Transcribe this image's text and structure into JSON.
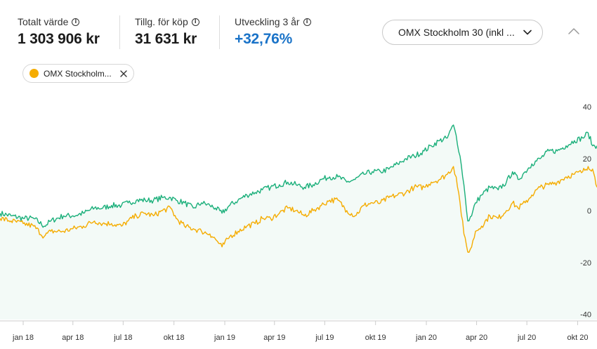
{
  "stats": [
    {
      "label": "Totalt värde",
      "value": "1 303 906 kr",
      "positive": false
    },
    {
      "label": "Tillg. för köp",
      "value": "31 631 kr",
      "positive": false
    },
    {
      "label": "Utveckling 3 år",
      "value": "+32,76%",
      "positive": true
    }
  ],
  "index_select": {
    "value": "OMX Stockholm 30 (inkl ..."
  },
  "chip": {
    "label": "OMX Stockholm...",
    "color": "#f5ac00"
  },
  "colors": {
    "portfolio": "#1aaf7a",
    "index": "#f5ac00",
    "area": "#f3faf7",
    "grid": "#cccccc"
  },
  "chart_data": {
    "type": "line",
    "x_ticks": [
      "jan 18",
      "apr 18",
      "jul 18",
      "okt 18",
      "jan 19",
      "apr 19",
      "jul 19",
      "okt 19",
      "jan 20",
      "apr 20",
      "jul 20",
      "okt 20"
    ],
    "y_ticks": [
      40,
      20,
      0,
      -20,
      -40
    ],
    "ylim": [
      -42,
      46
    ],
    "x_range": [
      "2017-11-20",
      "2020-11-05"
    ],
    "series": [
      {
        "points": [
          [
            "2017-11-20",
            -1
          ],
          [
            "2017-12-10",
            -2
          ],
          [
            "2018-01-01",
            -3
          ],
          [
            "2018-01-20",
            -3
          ],
          [
            "2018-02-08",
            -6
          ],
          [
            "2018-02-20",
            -4
          ],
          [
            "2018-03-15",
            -2
          ],
          [
            "2018-04-01",
            -2
          ],
          [
            "2018-04-20",
            -1
          ],
          [
            "2018-05-10",
            1
          ],
          [
            "2018-05-25",
            1
          ],
          [
            "2018-06-10",
            2
          ],
          [
            "2018-06-28",
            2
          ],
          [
            "2018-07-10",
            3
          ],
          [
            "2018-07-25",
            4
          ],
          [
            "2018-08-10",
            4
          ],
          [
            "2018-08-25",
            4
          ],
          [
            "2018-09-10",
            5
          ],
          [
            "2018-09-25",
            5
          ],
          [
            "2018-10-05",
            4
          ],
          [
            "2018-10-20",
            3
          ],
          [
            "2018-11-05",
            1
          ],
          [
            "2018-11-20",
            3
          ],
          [
            "2018-12-05",
            2
          ],
          [
            "2018-12-15",
            1
          ],
          [
            "2018-12-27",
            -1
          ],
          [
            "2019-01-10",
            2
          ],
          [
            "2019-01-25",
            4
          ],
          [
            "2019-02-10",
            6
          ],
          [
            "2019-02-25",
            7
          ],
          [
            "2019-03-10",
            8
          ],
          [
            "2019-03-25",
            9
          ],
          [
            "2019-04-10",
            10
          ],
          [
            "2019-04-25",
            11
          ],
          [
            "2019-05-10",
            10
          ],
          [
            "2019-05-25",
            9
          ],
          [
            "2019-06-10",
            10
          ],
          [
            "2019-06-25",
            12
          ],
          [
            "2019-07-10",
            13
          ],
          [
            "2019-07-25",
            13
          ],
          [
            "2019-08-10",
            11
          ],
          [
            "2019-08-25",
            12
          ],
          [
            "2019-09-10",
            14
          ],
          [
            "2019-09-25",
            15
          ],
          [
            "2019-10-10",
            15
          ],
          [
            "2019-10-25",
            16
          ],
          [
            "2019-11-10",
            18
          ],
          [
            "2019-11-25",
            20
          ],
          [
            "2019-12-10",
            21
          ],
          [
            "2019-12-28",
            23
          ],
          [
            "2020-01-10",
            25
          ],
          [
            "2020-01-25",
            27
          ],
          [
            "2020-02-08",
            28
          ],
          [
            "2020-02-19",
            33
          ],
          [
            "2020-02-24",
            29
          ],
          [
            "2020-03-02",
            21
          ],
          [
            "2020-03-09",
            10
          ],
          [
            "2020-03-16",
            -4
          ],
          [
            "2020-03-23",
            -2
          ],
          [
            "2020-03-30",
            3
          ],
          [
            "2020-04-10",
            6
          ],
          [
            "2020-04-25",
            9
          ],
          [
            "2020-05-10",
            8
          ],
          [
            "2020-05-25",
            11
          ],
          [
            "2020-06-05",
            15
          ],
          [
            "2020-06-15",
            12
          ],
          [
            "2020-06-28",
            15
          ],
          [
            "2020-07-10",
            18
          ],
          [
            "2020-07-25",
            20
          ],
          [
            "2020-08-10",
            23
          ],
          [
            "2020-08-25",
            23
          ],
          [
            "2020-09-10",
            25
          ],
          [
            "2020-09-25",
            27
          ],
          [
            "2020-10-10",
            28
          ],
          [
            "2020-10-20",
            30
          ],
          [
            "2020-10-28",
            25
          ],
          [
            "2020-11-05",
            25
          ]
        ]
      },
      {
        "points": [
          [
            "2017-11-20",
            -3
          ],
          [
            "2017-12-10",
            -4
          ],
          [
            "2018-01-01",
            -5
          ],
          [
            "2018-01-20",
            -6
          ],
          [
            "2018-02-08",
            -10
          ],
          [
            "2018-02-20",
            -8
          ],
          [
            "2018-03-15",
            -8
          ],
          [
            "2018-04-01",
            -7
          ],
          [
            "2018-04-20",
            -6
          ],
          [
            "2018-05-10",
            -4
          ],
          [
            "2018-05-25",
            -5
          ],
          [
            "2018-06-10",
            -5
          ],
          [
            "2018-06-28",
            -6
          ],
          [
            "2018-07-10",
            -4
          ],
          [
            "2018-07-25",
            -2
          ],
          [
            "2018-08-10",
            -1
          ],
          [
            "2018-08-25",
            -2
          ],
          [
            "2018-09-10",
            0
          ],
          [
            "2018-09-25",
            1
          ],
          [
            "2018-10-05",
            -3
          ],
          [
            "2018-10-20",
            -6
          ],
          [
            "2018-11-05",
            -7
          ],
          [
            "2018-11-20",
            -8
          ],
          [
            "2018-12-05",
            -9
          ],
          [
            "2018-12-15",
            -11
          ],
          [
            "2018-12-27",
            -14
          ],
          [
            "2019-01-10",
            -10
          ],
          [
            "2019-01-25",
            -8
          ],
          [
            "2019-02-10",
            -6
          ],
          [
            "2019-02-25",
            -5
          ],
          [
            "2019-03-10",
            -3
          ],
          [
            "2019-03-25",
            -3
          ],
          [
            "2019-04-10",
            -1
          ],
          [
            "2019-04-25",
            1
          ],
          [
            "2019-05-10",
            0
          ],
          [
            "2019-05-25",
            -2
          ],
          [
            "2019-06-10",
            0
          ],
          [
            "2019-06-25",
            2
          ],
          [
            "2019-07-10",
            4
          ],
          [
            "2019-07-25",
            4
          ],
          [
            "2019-08-10",
            0
          ],
          [
            "2019-08-25",
            -2
          ],
          [
            "2019-09-10",
            2
          ],
          [
            "2019-09-25",
            3
          ],
          [
            "2019-10-10",
            3
          ],
          [
            "2019-10-25",
            5
          ],
          [
            "2019-11-10",
            6
          ],
          [
            "2019-11-25",
            7
          ],
          [
            "2019-12-10",
            9
          ],
          [
            "2019-12-28",
            9
          ],
          [
            "2020-01-10",
            11
          ],
          [
            "2020-01-25",
            12
          ],
          [
            "2020-02-08",
            14
          ],
          [
            "2020-02-19",
            17
          ],
          [
            "2020-02-24",
            13
          ],
          [
            "2020-03-02",
            3
          ],
          [
            "2020-03-09",
            -9
          ],
          [
            "2020-03-16",
            -16
          ],
          [
            "2020-03-23",
            -14
          ],
          [
            "2020-03-30",
            -8
          ],
          [
            "2020-04-10",
            -6
          ],
          [
            "2020-04-25",
            -2
          ],
          [
            "2020-05-10",
            -3
          ],
          [
            "2020-05-25",
            0
          ],
          [
            "2020-06-05",
            3
          ],
          [
            "2020-06-15",
            1
          ],
          [
            "2020-06-28",
            3
          ],
          [
            "2020-07-10",
            6
          ],
          [
            "2020-07-25",
            9
          ],
          [
            "2020-08-10",
            10
          ],
          [
            "2020-08-25",
            11
          ],
          [
            "2020-09-10",
            13
          ],
          [
            "2020-09-25",
            14
          ],
          [
            "2020-10-10",
            15
          ],
          [
            "2020-10-20",
            17
          ],
          [
            "2020-10-28",
            16
          ],
          [
            "2020-11-05",
            9
          ]
        ]
      }
    ]
  }
}
